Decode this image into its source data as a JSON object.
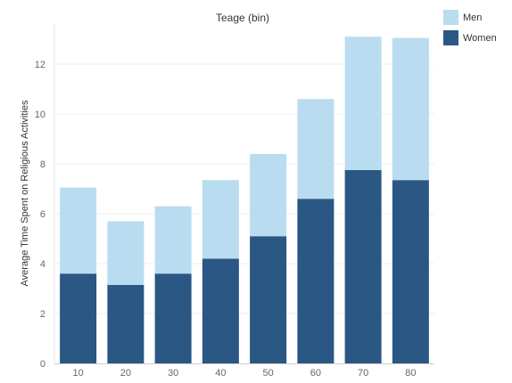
{
  "chart_data": {
    "type": "bar",
    "stacked": true,
    "title": "Teage (bin)",
    "ylabel": "Average Time Spent on Religious Activities",
    "xlabel": "",
    "categories": [
      "10",
      "20",
      "30",
      "40",
      "50",
      "60",
      "70",
      "80"
    ],
    "series": [
      {
        "name": "Women",
        "color": "#2a5783",
        "values": [
          3.6,
          3.15,
          3.6,
          4.2,
          5.1,
          6.6,
          7.75,
          7.35
        ]
      },
      {
        "name": "Men",
        "color": "#b9dcf0",
        "values": [
          3.45,
          2.55,
          2.7,
          3.15,
          3.3,
          4.0,
          5.35,
          5.7
        ]
      }
    ],
    "ylim": [
      0,
      13.5
    ],
    "yticks": [
      0,
      2,
      4,
      6,
      8,
      10,
      12
    ],
    "grid": true,
    "legend_position": "top-right"
  },
  "legend": {
    "items": [
      {
        "label": "Men",
        "color": "#b9dcf0"
      },
      {
        "label": "Women",
        "color": "#2a5783"
      }
    ]
  }
}
